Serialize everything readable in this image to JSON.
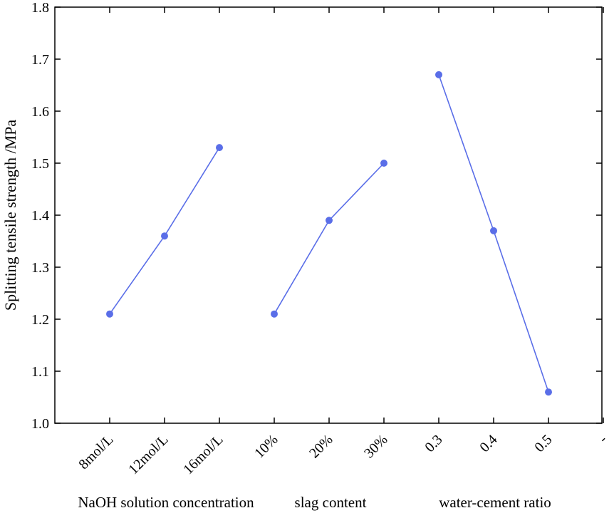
{
  "chart_data": {
    "type": "line",
    "ylabel": "Splitting tensile strength /MPa",
    "ylim": [
      1.0,
      1.8
    ],
    "yticks": [
      "1.0",
      "1.1",
      "1.2",
      "1.3",
      "1.4",
      "1.5",
      "1.6",
      "1.7",
      "1.8"
    ],
    "grid": false,
    "legend": "none",
    "color": "#5a6ee8",
    "categories": [
      "8mol/L",
      "12mol/L",
      "16mol/L",
      "10%",
      "20%",
      "30%",
      "0.3",
      "0.4",
      "0.5",
      "-"
    ],
    "groups": [
      {
        "label": "NaOH solution concentration",
        "categories": [
          "8mol/L",
          "12mol/L",
          "16mol/L"
        ],
        "values": [
          1.21,
          1.36,
          1.53
        ]
      },
      {
        "label": "slag content",
        "categories": [
          "10%",
          "20%",
          "30%"
        ],
        "values": [
          1.21,
          1.39,
          1.5
        ]
      },
      {
        "label": "water-cement ratio",
        "categories": [
          "0.3",
          "0.4",
          "0.5"
        ],
        "values": [
          1.67,
          1.37,
          1.06
        ]
      }
    ]
  }
}
